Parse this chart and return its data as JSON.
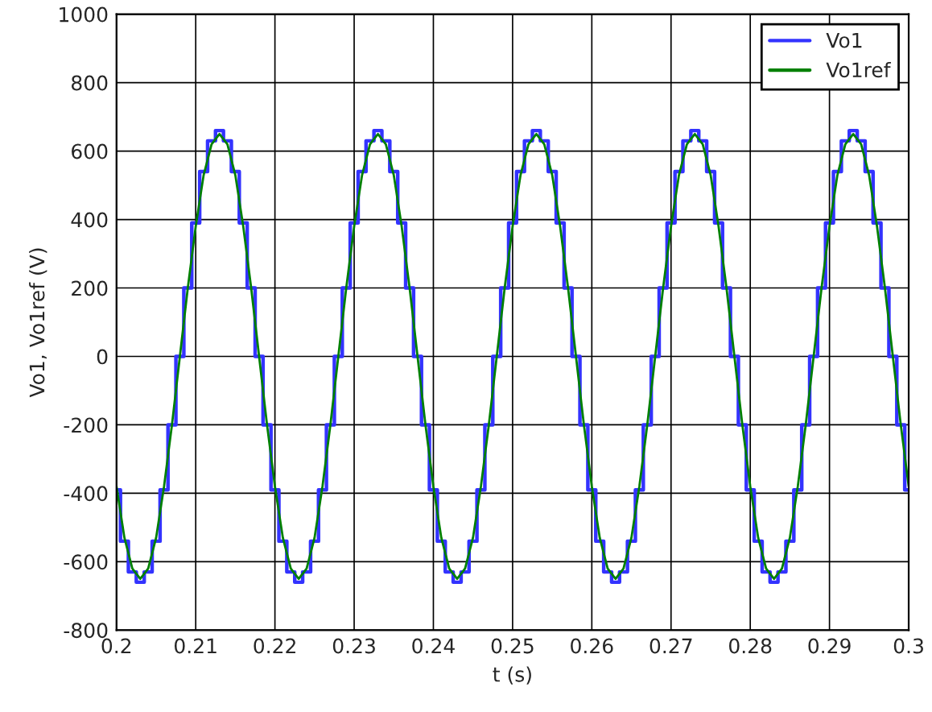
{
  "chart_data": {
    "type": "line",
    "xlabel": "t (s)",
    "ylabel": "Vo1, Vo1ref (V)",
    "x": [
      0.2,
      0.201,
      0.202,
      0.203,
      0.204,
      0.205,
      0.206,
      0.207,
      0.208,
      0.209,
      0.21,
      0.211,
      0.212,
      0.213,
      0.214,
      0.215,
      0.216,
      0.217,
      0.218,
      0.219,
      0.22,
      0.221,
      0.222,
      0.223,
      0.224,
      0.225,
      0.226,
      0.227,
      0.228,
      0.229,
      0.23,
      0.231,
      0.232,
      0.233,
      0.234,
      0.235,
      0.236,
      0.237,
      0.238,
      0.239,
      0.24,
      0.241,
      0.242,
      0.243,
      0.244,
      0.245,
      0.246,
      0.247,
      0.248,
      0.249,
      0.25,
      0.251,
      0.252,
      0.253,
      0.254,
      0.255,
      0.256,
      0.257,
      0.258,
      0.259,
      0.26,
      0.261,
      0.262,
      0.263,
      0.264,
      0.265,
      0.266,
      0.267,
      0.268,
      0.269,
      0.27,
      0.271,
      0.272,
      0.273,
      0.274,
      0.275,
      0.276,
      0.277,
      0.278,
      0.279,
      0.28,
      0.281,
      0.282,
      0.283,
      0.284,
      0.285,
      0.286,
      0.287,
      0.288,
      0.289,
      0.29,
      0.291,
      0.292,
      0.293,
      0.294,
      0.295,
      0.296,
      0.297,
      0.298,
      0.299,
      0.3
    ],
    "series": [
      {
        "name": "Vo1",
        "color": "#3333ff",
        "type": "step",
        "values": [
          -390,
          -540,
          -630,
          -660,
          -630,
          -540,
          -390,
          -200,
          0,
          200,
          390,
          540,
          630,
          660,
          630,
          540,
          390,
          200,
          0,
          -200,
          -390,
          -540,
          -630,
          -660,
          -630,
          -540,
          -390,
          -200,
          0,
          200,
          390,
          540,
          630,
          660,
          630,
          540,
          390,
          200,
          0,
          -200,
          -390,
          -540,
          -630,
          -660,
          -630,
          -540,
          -390,
          -200,
          0,
          200,
          390,
          540,
          630,
          660,
          630,
          540,
          390,
          200,
          0,
          -200,
          -390,
          -540,
          -630,
          -660,
          -630,
          -540,
          -390,
          -200,
          0,
          200,
          390,
          540,
          630,
          660,
          630,
          540,
          390,
          200,
          0,
          -200,
          -390,
          -540,
          -630,
          -660,
          -630,
          -540,
          -390,
          -200,
          0,
          200,
          390,
          540,
          630,
          660,
          630,
          540,
          390,
          200,
          0,
          -200,
          -390
        ]
      },
      {
        "name": "Vo1ref",
        "color": "#008000",
        "values": [
          -380,
          -530,
          -620,
          -650,
          -620,
          -530,
          -380,
          -200,
          0,
          200,
          380,
          530,
          620,
          650,
          620,
          530,
          380,
          200,
          0,
          -200,
          -380,
          -530,
          -620,
          -650,
          -620,
          -530,
          -380,
          -200,
          0,
          200,
          380,
          530,
          620,
          650,
          620,
          530,
          380,
          200,
          0,
          -200,
          -380,
          -530,
          -620,
          -650,
          -620,
          -530,
          -380,
          -200,
          0,
          200,
          380,
          530,
          620,
          650,
          620,
          530,
          380,
          200,
          0,
          -200,
          -380,
          -530,
          -620,
          -650,
          -620,
          -530,
          -380,
          -200,
          0,
          200,
          380,
          530,
          620,
          650,
          620,
          530,
          380,
          200,
          0,
          -200,
          -380,
          -530,
          -620,
          -650,
          -620,
          -530,
          -380,
          -200,
          0,
          200,
          380,
          530,
          620,
          650,
          620,
          530,
          380,
          200,
          0,
          -200,
          -380
        ]
      }
    ],
    "xlim": [
      0.2,
      0.3
    ],
    "xticks": [
      0.2,
      0.21,
      0.22,
      0.23,
      0.24,
      0.25,
      0.26,
      0.27,
      0.28,
      0.29,
      0.3
    ],
    "ylim": [
      -800,
      1000
    ],
    "yticks": [
      -800,
      -600,
      -400,
      -200,
      0,
      200,
      400,
      600,
      800,
      1000
    ],
    "grid": true,
    "legend": "top right",
    "line_style": "solid"
  }
}
